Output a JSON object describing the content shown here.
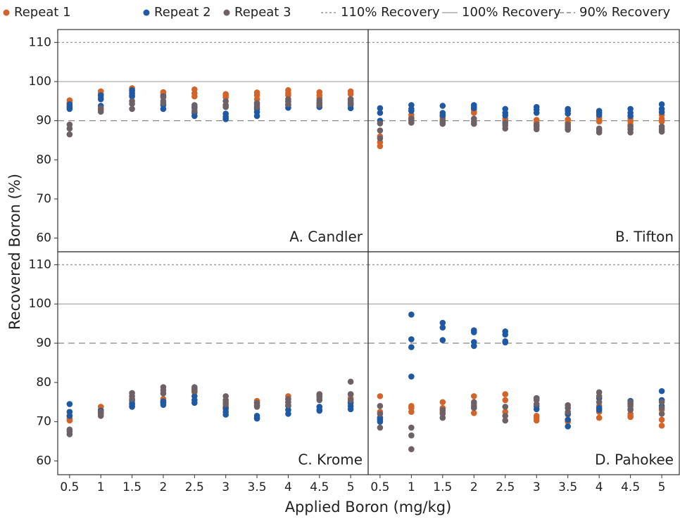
{
  "y_label": "Recovered Boron (%)",
  "x_label": "Applied Boron (mg/kg)",
  "reference_lines": [
    {
      "name": "110% Recovery",
      "value": 110,
      "style": "dotted"
    },
    {
      "name": "100% Recovery",
      "value": 100,
      "style": "solid"
    },
    {
      "name": "90% Recovery",
      "value": 90,
      "style": "dashed"
    }
  ],
  "chart_data": [
    {
      "type": "scatter",
      "title": "A. Candler",
      "xlim": [
        0.31,
        5.28
      ],
      "ylim": [
        56.5,
        113.3
      ],
      "yticks": [
        60,
        70,
        80,
        90,
        100,
        110
      ],
      "series": [
        {
          "name": "Repeat 1",
          "color": "#d2642a",
          "x": [
            0.5,
            0.5,
            0.5,
            1,
            1,
            1,
            1.5,
            1.5,
            1.5,
            2,
            2,
            2,
            2.5,
            2.5,
            2.5,
            3,
            3,
            3,
            3.5,
            3.5,
            3.5,
            4,
            4,
            4,
            4.5,
            4.5,
            4.5,
            5,
            5,
            5
          ],
          "values": [
            95.2,
            94.5,
            93.8,
            97.5,
            96.8,
            96.0,
            98.3,
            97.5,
            96.5,
            97.3,
            97.0,
            96.5,
            98.0,
            97.0,
            96.2,
            96.8,
            96.5,
            96.0,
            97.2,
            96.5,
            95.5,
            97.8,
            97.0,
            96.5,
            97.3,
            96.5,
            95.8,
            97.5,
            96.8,
            95.5
          ]
        },
        {
          "name": "Repeat 2",
          "color": "#1f58a3",
          "x": [
            0.5,
            0.5,
            0.5,
            1,
            1,
            1,
            1.5,
            1.5,
            1.5,
            2,
            2,
            2,
            2.5,
            2.5,
            2.5,
            3,
            3,
            3,
            3.5,
            3.5,
            3.5,
            4,
            4,
            4,
            4.5,
            4.5,
            4.5,
            5,
            5,
            5
          ],
          "values": [
            94.2,
            93.5,
            93.0,
            96.5,
            95.5,
            93.8,
            97.8,
            97.0,
            96.2,
            96.2,
            94.0,
            93.0,
            93.5,
            92.0,
            91.2,
            91.8,
            91.0,
            90.4,
            93.0,
            92.2,
            91.2,
            95.0,
            94.0,
            93.3,
            94.5,
            94.0,
            93.5,
            94.5,
            94.0,
            93.2
          ]
        },
        {
          "name": "Repeat 3",
          "color": "#6d6168",
          "x": [
            0.5,
            0.5,
            0.5,
            1,
            1,
            1,
            1.5,
            1.5,
            1.5,
            2,
            2,
            2,
            2.5,
            2.5,
            2.5,
            3,
            3,
            3,
            3.5,
            3.5,
            3.5,
            4,
            4,
            4,
            4.5,
            4.5,
            4.5,
            5,
            5,
            5
          ],
          "values": [
            89.0,
            88.0,
            86.5,
            93.2,
            92.8,
            92.3,
            95.0,
            94.3,
            93.0,
            96.0,
            95.0,
            94.5,
            94.0,
            93.2,
            92.5,
            95.0,
            94.0,
            93.5,
            94.5,
            94.0,
            93.5,
            95.5,
            94.8,
            94.2,
            95.2,
            94.5,
            94.0,
            95.5,
            95.0,
            94.3
          ]
        }
      ]
    },
    {
      "type": "scatter",
      "title": "B. Tifton",
      "xlim": [
        0.31,
        5.28
      ],
      "ylim": [
        56.5,
        113.3
      ],
      "series": [
        {
          "color": "#d2642a",
          "x": [
            0.5,
            0.5,
            0.5,
            1,
            1,
            1,
            1.5,
            1.5,
            1.5,
            2,
            2,
            2,
            2.5,
            2.5,
            2.5,
            3,
            3,
            3,
            3.5,
            3.5,
            3.5,
            4,
            4,
            4,
            4.5,
            4.5,
            4.5,
            5,
            5,
            5
          ],
          "values": [
            86.0,
            84.5,
            83.5,
            91.5,
            90.8,
            90.3,
            91.5,
            91.0,
            90.5,
            92.8,
            92.3,
            92.0,
            90.5,
            90.0,
            89.3,
            90.2,
            89.5,
            88.8,
            90.3,
            89.5,
            88.8,
            91.0,
            90.5,
            89.8,
            90.5,
            89.8,
            89.0,
            91.5,
            90.5,
            89.8
          ]
        },
        {
          "color": "#1f58a3",
          "x": [
            0.5,
            0.5,
            0.5,
            1,
            1,
            1,
            1.5,
            1.5,
            1.5,
            2,
            2,
            2,
            2.5,
            2.5,
            2.5,
            3,
            3,
            3,
            3.5,
            3.5,
            3.5,
            4,
            4,
            4,
            4.5,
            4.5,
            4.5,
            5,
            5,
            5
          ],
          "values": [
            93.2,
            92.0,
            90.0,
            94.0,
            93.0,
            92.5,
            93.8,
            92.0,
            91.3,
            94.0,
            93.5,
            93.2,
            93.0,
            92.0,
            91.3,
            93.5,
            92.8,
            92.0,
            93.0,
            92.5,
            91.8,
            92.5,
            92.0,
            91.5,
            93.0,
            92.0,
            91.2,
            94.2,
            93.0,
            92.2
          ]
        },
        {
          "color": "#6d6168",
          "x": [
            0.5,
            0.5,
            0.5,
            1,
            1,
            1,
            1.5,
            1.5,
            1.5,
            2,
            2,
            2,
            2.5,
            2.5,
            2.5,
            3,
            3,
            3,
            3.5,
            3.5,
            3.5,
            4,
            4,
            4,
            4.5,
            4.5,
            4.5,
            5,
            5,
            5
          ],
          "values": [
            89.3,
            87.5,
            85.5,
            90.5,
            90.0,
            89.5,
            90.0,
            89.5,
            89.2,
            90.5,
            89.8,
            89.2,
            89.5,
            88.8,
            88.0,
            89.0,
            88.5,
            87.8,
            89.0,
            88.3,
            87.7,
            88.0,
            87.5,
            87.0,
            88.5,
            87.8,
            87.0,
            88.5,
            87.8,
            87.2
          ]
        }
      ]
    },
    {
      "type": "scatter",
      "title": "C. Krome",
      "xlim": [
        0.31,
        5.28
      ],
      "ylim": [
        56.5,
        113.3
      ],
      "yticks": [
        60,
        70,
        80,
        90,
        100,
        110
      ],
      "xticks": [
        0.5,
        1,
        1.5,
        2,
        2.5,
        3,
        3.5,
        4,
        4.5,
        5
      ],
      "series": [
        {
          "color": "#d2642a",
          "x": [
            0.5,
            0.5,
            0.5,
            1,
            1,
            1,
            1.5,
            1.5,
            1.5,
            2,
            2,
            2,
            2.5,
            2.5,
            2.5,
            3,
            3,
            3,
            3.5,
            3.5,
            3.5,
            4,
            4,
            4,
            4.5,
            4.5,
            4.5,
            5,
            5,
            5
          ],
          "values": [
            71.5,
            70.8,
            70.3,
            73.8,
            73.0,
            72.5,
            75.0,
            74.5,
            74.0,
            75.8,
            75.3,
            74.8,
            78.5,
            78.0,
            77.5,
            75.0,
            74.0,
            73.2,
            75.3,
            74.8,
            74.2,
            76.5,
            75.8,
            75.0,
            77.0,
            76.5,
            76.0,
            77.0,
            76.0,
            75.0
          ]
        },
        {
          "color": "#1f58a3",
          "x": [
            0.5,
            0.5,
            0.5,
            1,
            1,
            1,
            1.5,
            1.5,
            1.5,
            2,
            2,
            2,
            2.5,
            2.5,
            2.5,
            3,
            3,
            3,
            3.5,
            3.5,
            3.5,
            4,
            4,
            4,
            4.5,
            4.5,
            4.5,
            5,
            5,
            5
          ],
          "values": [
            74.5,
            72.5,
            71.5,
            72.8,
            72.5,
            72.2,
            75.5,
            74.5,
            73.8,
            75.2,
            74.8,
            74.3,
            76.5,
            75.5,
            74.8,
            73.5,
            72.5,
            71.8,
            71.5,
            71.0,
            70.8,
            74.0,
            73.0,
            72.0,
            73.8,
            73.0,
            72.8,
            74.8,
            74.0,
            73.2
          ]
        },
        {
          "color": "#6d6168",
          "x": [
            0.5,
            0.5,
            0.5,
            1,
            1,
            1,
            1.5,
            1.5,
            1.5,
            2,
            2,
            2,
            2.5,
            2.5,
            2.5,
            3,
            3,
            3,
            3.5,
            3.5,
            3.5,
            4,
            4,
            4,
            4.5,
            4.5,
            4.5,
            5,
            5,
            5
          ],
          "values": [
            68.0,
            67.5,
            66.8,
            72.5,
            72.0,
            71.5,
            77.3,
            76.5,
            75.8,
            78.8,
            78.0,
            77.2,
            78.8,
            78.3,
            77.8,
            76.5,
            75.5,
            74.5,
            74.8,
            74.2,
            73.8,
            75.8,
            75.0,
            74.2,
            77.0,
            76.5,
            75.5,
            80.2,
            77.0,
            75.5
          ]
        }
      ]
    },
    {
      "type": "scatter",
      "title": "D. Pahokee",
      "xlim": [
        0.31,
        5.28
      ],
      "ylim": [
        56.5,
        113.3
      ],
      "xticks": [
        0.5,
        1,
        1.5,
        2,
        2.5,
        3,
        3.5,
        4,
        4.5,
        5
      ],
      "series": [
        {
          "color": "#d2642a",
          "x": [
            0.5,
            0.5,
            0.5,
            1,
            1,
            1,
            1.5,
            1.5,
            1.5,
            2,
            2,
            2,
            2.5,
            2.5,
            2.5,
            3,
            3,
            3,
            3.5,
            3.5,
            3.5,
            4,
            4,
            4,
            4.5,
            4.5,
            4.5,
            5,
            5,
            5
          ],
          "values": [
            76.5,
            72.5,
            71.0,
            74.0,
            73.5,
            72.5,
            75.0,
            73.5,
            72.5,
            76.5,
            74.5,
            72.2,
            77.0,
            75.5,
            72.5,
            71.5,
            71.0,
            70.3,
            71.8,
            70.5,
            70.0,
            74.0,
            72.5,
            71.0,
            72.0,
            71.5,
            71.2,
            73.0,
            70.5,
            69.0
          ]
        },
        {
          "color": "#1f58a3",
          "x": [
            0.5,
            0.5,
            0.5,
            1,
            1,
            1,
            1,
            1.5,
            1.5,
            1.5,
            2,
            2,
            2,
            2,
            2.5,
            2.5,
            2.5,
            2.5,
            3,
            3,
            3,
            3.5,
            3.5,
            3.5,
            4,
            4,
            4,
            4.5,
            4.5,
            4.5,
            5,
            5,
            5
          ],
          "values": [
            71.0,
            70.5,
            70.0,
            97.3,
            91.0,
            89.0,
            81.5,
            95.2,
            94.0,
            90.8,
            93.3,
            92.8,
            90.3,
            89.3,
            93.0,
            92.2,
            90.5,
            90.2,
            76.0,
            74.0,
            73.2,
            72.0,
            70.5,
            68.8,
            76.0,
            73.5,
            73.0,
            75.3,
            74.5,
            73.2,
            77.8,
            75.5,
            74.0
          ]
        },
        {
          "color": "#6d6168",
          "x": [
            0.5,
            0.5,
            0.5,
            1,
            1,
            1,
            1.5,
            1.5,
            1.5,
            2,
            2,
            2,
            2.5,
            2.5,
            2.5,
            3,
            3,
            3,
            3.5,
            3.5,
            3.5,
            4,
            4,
            4,
            4.5,
            4.5,
            4.5,
            5,
            5,
            5
          ],
          "values": [
            74.0,
            72.0,
            68.5,
            68.5,
            66.5,
            63.0,
            73.0,
            72.0,
            71.0,
            75.0,
            74.0,
            73.5,
            73.8,
            71.5,
            70.3,
            76.0,
            75.5,
            74.5,
            74.2,
            73.5,
            72.5,
            77.5,
            76.5,
            75.0,
            75.0,
            74.0,
            73.0,
            75.0,
            73.5,
            72.0
          ]
        }
      ]
    }
  ]
}
